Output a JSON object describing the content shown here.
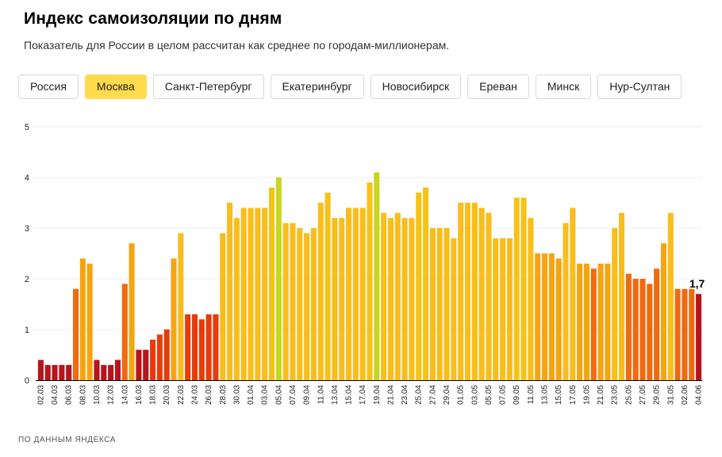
{
  "header": {
    "title": "Индекс самоизоляции по дням",
    "subtitle": "Показатель для России в целом рассчитан как среднее по городам-миллионерам."
  },
  "tabs": [
    {
      "label": "Россия",
      "active": false
    },
    {
      "label": "Москва",
      "active": true
    },
    {
      "label": "Санкт-Петербург",
      "active": false
    },
    {
      "label": "Екатеринбург",
      "active": false
    },
    {
      "label": "Новосибирск",
      "active": false
    },
    {
      "label": "Ереван",
      "active": false
    },
    {
      "label": "Минск",
      "active": false
    },
    {
      "label": "Нур-Султан",
      "active": false
    }
  ],
  "footer": {
    "source": "ПО ДАННЫМ ЯНДЕКСА"
  },
  "chart_data": {
    "type": "bar",
    "ylim": [
      0,
      5
    ],
    "yticks": [
      "0",
      "1",
      "2",
      "3",
      "4",
      "5"
    ],
    "grid": true,
    "last_value_label": "1,7",
    "colors": {
      "low": "#b7141b",
      "mid_low": "#e63b0b",
      "mid": "#f06a0f",
      "mid_high": "#f5a412",
      "high": "#f9bd1c",
      "top": "#c8d620",
      "grid": "#ececec",
      "axis": "#000000"
    },
    "categories": [
      "02.03",
      "03.03",
      "04.03",
      "05.03",
      "06.03",
      "07.03",
      "08.03",
      "09.03",
      "10.03",
      "11.03",
      "12.03",
      "13.03",
      "14.03",
      "15.03",
      "16.03",
      "17.03",
      "18.03",
      "19.03",
      "20.03",
      "21.03",
      "22.03",
      "23.03",
      "24.03",
      "25.03",
      "26.03",
      "27.03",
      "28.03",
      "29.03",
      "30.03",
      "31.03",
      "01.04",
      "02.04",
      "03.04",
      "04.04",
      "05.04",
      "06.04",
      "07.04",
      "08.04",
      "09.04",
      "10.04",
      "11.04",
      "12.04",
      "13.04",
      "14.04",
      "15.04",
      "16.04",
      "17.04",
      "18.04",
      "19.04",
      "20.04",
      "21.04",
      "22.04",
      "23.04",
      "24.04",
      "25.04",
      "26.04",
      "27.04",
      "28.04",
      "29.04",
      "30.04",
      "01.05",
      "02.05",
      "03.05",
      "04.05",
      "05.05",
      "06.05",
      "07.05",
      "08.05",
      "09.05",
      "10.05",
      "11.05",
      "12.05",
      "13.05",
      "14.05",
      "15.05",
      "16.05",
      "17.05",
      "18.05",
      "19.05",
      "20.05",
      "21.05",
      "22.05",
      "23.05",
      "24.05",
      "25.05",
      "26.05",
      "27.05",
      "28.05",
      "29.05",
      "30.05",
      "31.05",
      "01.06",
      "02.06",
      "03.06",
      "04.06"
    ],
    "values": [
      0.4,
      0.3,
      0.3,
      0.3,
      0.3,
      1.8,
      2.4,
      2.3,
      0.4,
      0.3,
      0.3,
      0.4,
      1.9,
      2.7,
      0.6,
      0.6,
      0.8,
      0.9,
      1.0,
      2.4,
      2.9,
      1.3,
      1.3,
      1.2,
      1.3,
      1.3,
      2.9,
      3.5,
      3.2,
      3.4,
      3.4,
      3.4,
      3.4,
      3.8,
      4.0,
      3.1,
      3.1,
      3.0,
      2.9,
      3.0,
      3.5,
      3.7,
      3.2,
      3.2,
      3.4,
      3.4,
      3.4,
      3.9,
      4.1,
      3.3,
      3.2,
      3.3,
      3.2,
      3.2,
      3.7,
      3.8,
      3.0,
      3.0,
      3.0,
      2.8,
      3.5,
      3.5,
      3.5,
      3.4,
      3.3,
      2.8,
      2.8,
      2.8,
      3.6,
      3.6,
      3.2,
      2.5,
      2.5,
      2.5,
      2.4,
      3.1,
      3.4,
      2.3,
      2.3,
      2.2,
      2.3,
      2.3,
      3.0,
      3.3,
      2.1,
      2.0,
      2.0,
      1.9,
      2.2,
      2.7,
      3.3,
      1.8,
      1.8,
      1.8,
      1.7
    ]
  }
}
